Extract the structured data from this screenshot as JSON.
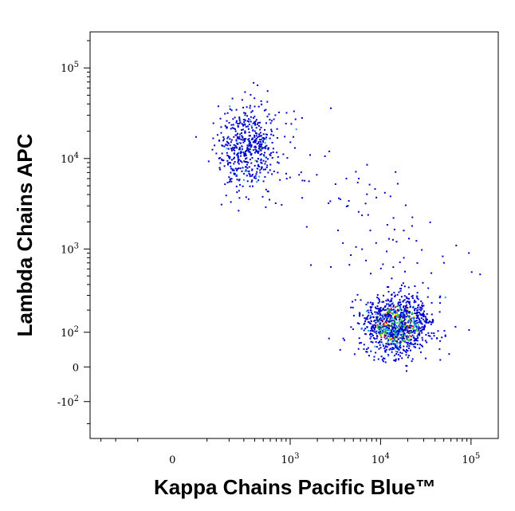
{
  "chart_data": {
    "type": "scatter",
    "style": "flow-cytometry density dot plot",
    "xlabel": "Kappa Chains Pacific Blue™",
    "ylabel": "Lambda Chains APC",
    "x_scale": "biexponential",
    "y_scale": "biexponential",
    "xlim": [
      -400,
      200000
    ],
    "ylim": [
      -300,
      250000
    ],
    "x_ticks": [
      {
        "value": 0,
        "base": "0",
        "exp": ""
      },
      {
        "value": 1000,
        "base": "10",
        "exp": "3"
      },
      {
        "value": 10000,
        "base": "10",
        "exp": "4"
      },
      {
        "value": 100000,
        "base": "10",
        "exp": "5"
      }
    ],
    "y_ticks": [
      {
        "value": -100,
        "base": "-10",
        "exp": "2"
      },
      {
        "value": 0,
        "base": "0",
        "exp": ""
      },
      {
        "value": 100,
        "base": "10",
        "exp": "2"
      },
      {
        "value": 1000,
        "base": "10",
        "exp": "3"
      },
      {
        "value": 10000,
        "base": "10",
        "exp": "4"
      },
      {
        "value": 100000,
        "base": "10",
        "exp": "5"
      }
    ],
    "density_colors": [
      "#0000cc",
      "#00aaff",
      "#33cc33",
      "#ffee00",
      "#ff0000"
    ],
    "populations": [
      {
        "label": "lambda",
        "x_center": 330,
        "y_center": 14000,
        "count": 520
      },
      {
        "label": "kappa",
        "x_center": 15000,
        "y_center": 130,
        "count": 1100
      }
    ],
    "grid": false,
    "legend": "none"
  }
}
